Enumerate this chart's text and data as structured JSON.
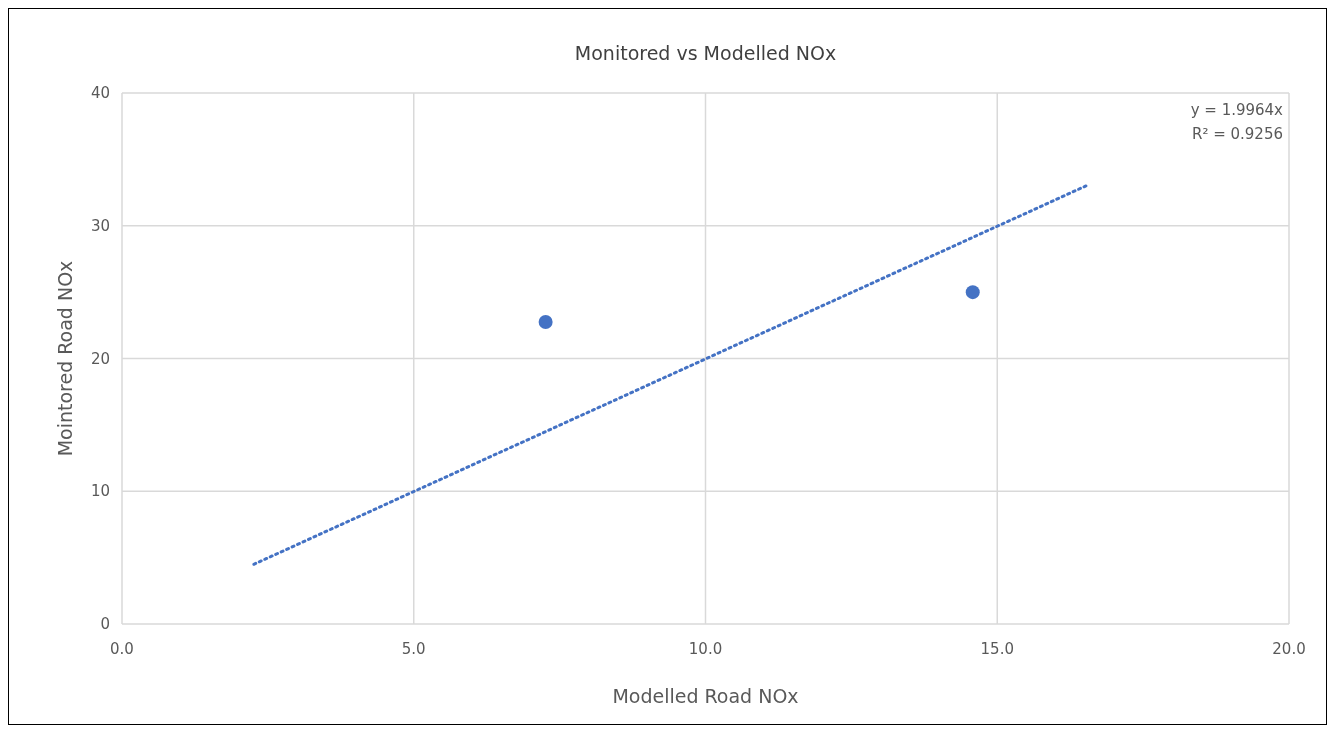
{
  "chart_data": {
    "type": "scatter",
    "title": "Monitored vs Modelled NOx",
    "xlabel": "Modelled Road NOx",
    "ylabel": "Mointored Road NOx",
    "xlim": [
      0,
      20
    ],
    "xticks": [
      {
        "value": 0,
        "label": "0.0"
      },
      {
        "value": 5,
        "label": "5.0"
      },
      {
        "value": 10,
        "label": "10.0"
      },
      {
        "value": 15,
        "label": "15.0"
      },
      {
        "value": 20,
        "label": "20.0"
      }
    ],
    "ylim": [
      0,
      40
    ],
    "yticks": [
      0,
      10,
      20,
      30,
      40
    ],
    "grid": true,
    "marker": "circle",
    "series": [
      {
        "color": "#4472c4",
        "x": [
          7.26,
          14.58
        ],
        "values": [
          22.75,
          25.0
        ]
      },
      {
        "type": "line",
        "color": "#4472c4",
        "line_style": "dotted",
        "marker": "none",
        "x": [
          2.26,
          16.57
        ],
        "values": [
          4.5,
          33.1
        ]
      }
    ],
    "annotations": [
      "y = 1.9964x",
      "R² = 0.9256"
    ]
  }
}
